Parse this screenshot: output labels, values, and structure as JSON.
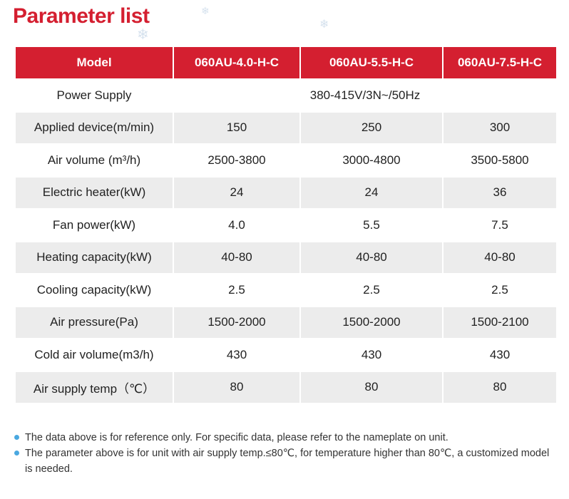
{
  "title": "Parameter list",
  "colors": {
    "accent": "#d41f30",
    "row_alt": "#ececec",
    "bullet": "#4aa8e0"
  },
  "table": {
    "headers": [
      "Model",
      "060AU-4.0-H-C",
      "060AU-5.5-H-C",
      "060AU-7.5-H-C"
    ],
    "power_supply": {
      "label": "Power Supply",
      "value": "380-415V/3N~/50Hz"
    },
    "rows": [
      {
        "label": "Applied device(m/min)",
        "values": [
          "150",
          "250",
          "300"
        ]
      },
      {
        "label": "Air volume (m³/h)",
        "values": [
          "2500-3800",
          "3000-4800",
          "3500-5800"
        ]
      },
      {
        "label": "Electric heater(kW)",
        "values": [
          "24",
          "24",
          "36"
        ]
      },
      {
        "label": "Fan power(kW)",
        "values": [
          "4.0",
          "5.5",
          "7.5"
        ]
      },
      {
        "label": "Heating capacity(kW)",
        "values": [
          "40-80",
          "40-80",
          "40-80"
        ]
      },
      {
        "label": "Cooling capacity(kW)",
        "values": [
          "2.5",
          "2.5",
          "2.5"
        ]
      },
      {
        "label": "Air pressure(Pa)",
        "values": [
          "1500-2000",
          "1500-2000",
          "1500-2100"
        ]
      },
      {
        "label": "Cold air volume(m3/h)",
        "values": [
          "430",
          "430",
          "430"
        ]
      },
      {
        "label": "Air supply temp（℃）",
        "values": [
          "80",
          "80",
          "80"
        ]
      }
    ]
  },
  "notes": [
    "The data above is for reference only. For specific data, please refer to the nameplate on unit.",
    "The parameter above is for unit with air supply temp.≤80℃, for temperature higher than 80℃, a customized model is needed."
  ]
}
